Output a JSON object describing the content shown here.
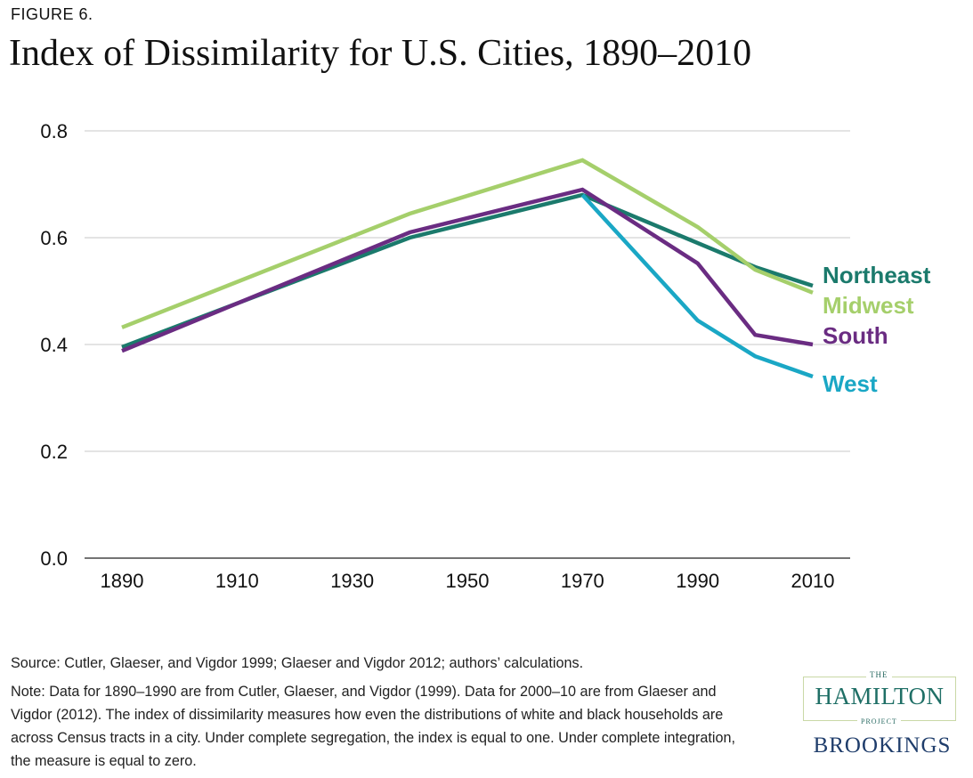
{
  "figure_label": "FIGURE 6.",
  "title": "Index of Dissimilarity for U.S. Cities, 1890–2010",
  "chart_data": {
    "type": "line",
    "title": "Index of Dissimilarity for U.S. Cities, 1890–2010",
    "xlabel": "",
    "ylabel": "",
    "x_ticks": [
      "1890",
      "1910",
      "1930",
      "1950",
      "1970",
      "1990",
      "2010"
    ],
    "y_ticks": [
      "0.0",
      "0.2",
      "0.4",
      "0.6",
      "0.8"
    ],
    "xlim": [
      1888,
      2016
    ],
    "ylim": [
      0,
      0.8
    ],
    "grid": "horizontal",
    "legend": "end-of-line labels, right",
    "series": [
      {
        "name": "Northeast",
        "color": "#1b7a6c",
        "points": [
          [
            1890,
            0.395
          ],
          [
            1940,
            0.6
          ],
          [
            1970,
            0.68
          ],
          [
            2000,
            0.545
          ],
          [
            2010,
            0.51
          ]
        ]
      },
      {
        "name": "Midwest",
        "color": "#a5cf6b",
        "points": [
          [
            1890,
            0.432
          ],
          [
            1940,
            0.645
          ],
          [
            1970,
            0.745
          ],
          [
            1990,
            0.62
          ],
          [
            2000,
            0.54
          ],
          [
            2010,
            0.497
          ]
        ]
      },
      {
        "name": "South",
        "color": "#6a2c82",
        "points": [
          [
            1890,
            0.388
          ],
          [
            1940,
            0.61
          ],
          [
            1970,
            0.69
          ],
          [
            1990,
            0.552
          ],
          [
            2000,
            0.418
          ],
          [
            2010,
            0.4
          ]
        ]
      },
      {
        "name": "West",
        "color": "#1aa7c5",
        "points": [
          [
            1970,
            0.68
          ],
          [
            1990,
            0.445
          ],
          [
            2000,
            0.378
          ],
          [
            2010,
            0.34
          ]
        ]
      }
    ]
  },
  "footnotes": {
    "source": "Source: Cutler, Glaeser, and Vigdor 1999; Glaeser and Vigdor 2012; authors’ calculations.",
    "note": "Note: Data for 1890–1990 are from Cutler, Glaeser, and Vigdor (1999). Data for 2000–10 are from Glaeser and Vigdor (2012). The index of dissimilarity measures how even the distributions of white and black households are across Census tracts in a city. Under complete segregation, the index is equal to one. Under complete integration, the measure is equal to zero."
  },
  "logo": {
    "the": "THE",
    "hamilton": "HAMILTON",
    "project": "PROJECT",
    "brookings": "BROOKINGS"
  }
}
